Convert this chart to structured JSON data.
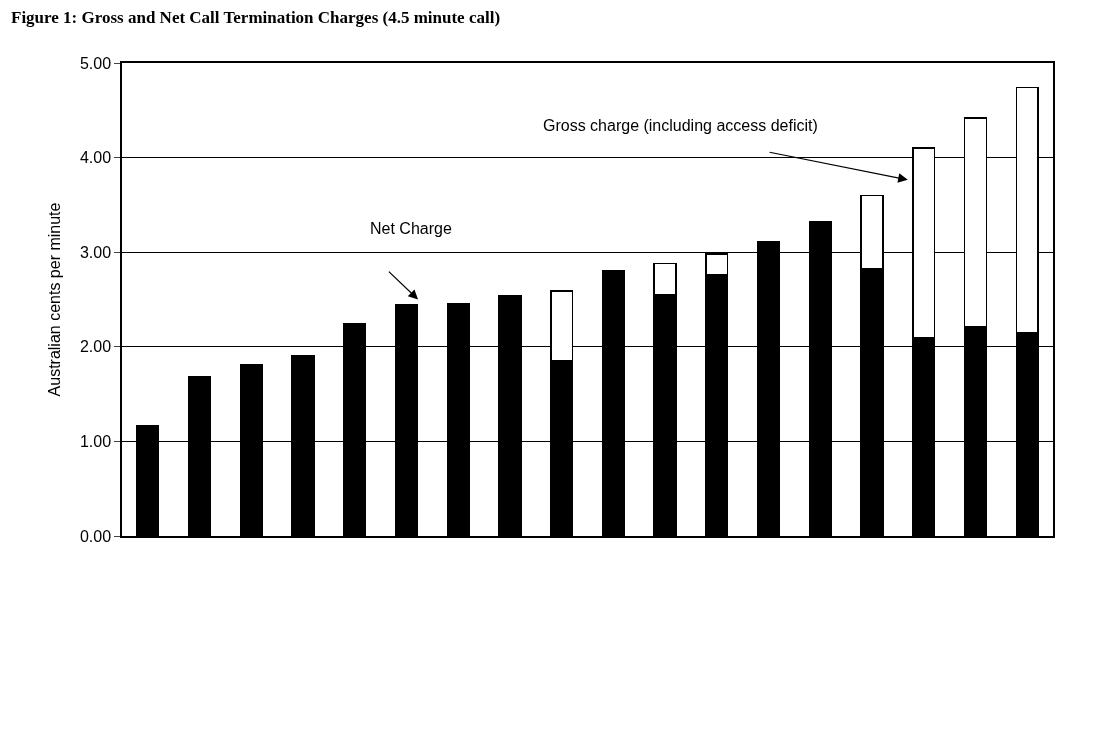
{
  "chart_data": {
    "type": "bar",
    "title": "Figure 1: Gross and Net Call Termination Charges (4.5 minute call)",
    "ylabel": "Australian cents per minute",
    "categories": [
      null,
      null,
      null,
      null,
      null,
      null,
      null,
      null,
      null,
      null,
      null,
      null,
      null,
      null,
      null,
      null,
      null,
      null
    ],
    "stacked": true,
    "series": [
      {
        "color": "#000000",
        "values": [
          1.17,
          1.68,
          1.81,
          1.91,
          2.24,
          2.44,
          2.46,
          2.54,
          1.85,
          2.8,
          2.55,
          2.76,
          3.11,
          3.32,
          2.83,
          2.1,
          2.21,
          2.15
        ]
      },
      {
        "color": "#ffffff",
        "values": [
          null,
          null,
          null,
          null,
          null,
          null,
          null,
          null,
          0.74,
          null,
          0.33,
          0.22,
          null,
          null,
          0.77,
          2.0,
          2.21,
          2.59
        ]
      }
    ],
    "ylim": [
      0,
      5
    ],
    "yticks": [
      {
        "value": 0,
        "label": "0.00"
      },
      {
        "value": 1,
        "label": "1.00"
      },
      {
        "value": 2,
        "label": "2.00"
      },
      {
        "value": 3,
        "label": "3.00"
      },
      {
        "value": 4,
        "label": "4.00"
      },
      {
        "value": 5,
        "label": "5.00"
      }
    ],
    "grid": "y",
    "annotations": [
      "Net Charge",
      "Gross charge (including access deficit)"
    ]
  }
}
